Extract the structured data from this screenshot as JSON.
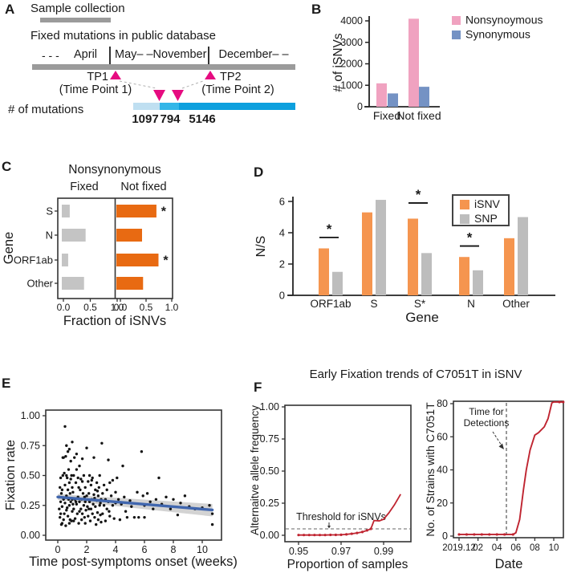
{
  "panelA": {
    "label": "A",
    "sample_collection": "Sample collection",
    "database_title": "Fixed mutations in public database",
    "months": {
      "pre": "- - -",
      "m1": "April",
      "m2": "May– –November",
      "m3": "December– –"
    },
    "tp1": "TP1",
    "tp1_sub": "(Time Point 1)",
    "tp2": "TP2",
    "tp2_sub": "(Time Point 2)",
    "mutations_label": "# of mutations",
    "segments": [
      {
        "value": "1097",
        "color": "#bfdff1"
      },
      {
        "value": "794",
        "color": "#33b6e8"
      },
      {
        "value": "5146",
        "color": "#0da0de"
      }
    ],
    "colors": {
      "timeline_gray": "#9b9b9b",
      "triangle_magenta": "#e60b80",
      "connector": "#b0b0b0"
    }
  },
  "panelB": {
    "label": "B"
  },
  "panelC": {
    "label": "C"
  },
  "panelD": {
    "label": "D"
  },
  "panelE": {
    "label": "E"
  },
  "panelF": {
    "label": "F",
    "title": "Early Fixation trends of C7051T in iSNV"
  },
  "chart_data": [
    {
      "id": "B",
      "type": "bar",
      "categories": [
        "Fixed",
        "Not fixed"
      ],
      "series": [
        {
          "name": "Nonsynoymous",
          "color": "#f0a2c0",
          "values": [
            1090,
            4100
          ]
        },
        {
          "name": "Synonymous",
          "color": "#7492c4",
          "values": [
            620,
            930
          ]
        }
      ],
      "ylabel": "# of iSNVs",
      "yticks": [
        0,
        1000,
        2000,
        3000,
        4000
      ],
      "ylim": [
        0,
        4300
      ],
      "legend_position": "right"
    },
    {
      "id": "C",
      "type": "bar-horizontal",
      "title": "Nonsynonymous",
      "ylabel": "Gene",
      "xlabel": "Fraction of iSNVs",
      "genes": [
        "S",
        "N",
        "ORF1ab",
        "Other"
      ],
      "panels": [
        {
          "name": "Fixed",
          "color": "#c4c4c4",
          "values": [
            0.15,
            0.45,
            0.12,
            0.42
          ],
          "sig": [
            "",
            "",
            "",
            ""
          ]
        },
        {
          "name": "Not fixed",
          "color": "#e86a12",
          "values": [
            0.78,
            0.5,
            0.82,
            0.52
          ],
          "sig": [
            "*",
            "",
            "*",
            ""
          ]
        }
      ],
      "xticks": [
        0.0,
        0.5,
        1.0
      ],
      "xlim": [
        0,
        1.05
      ]
    },
    {
      "id": "D",
      "type": "bar",
      "categories": [
        "ORF1ab",
        "S",
        "S*",
        "N",
        "Other"
      ],
      "series": [
        {
          "name": "iSNV",
          "color": "#f5954f",
          "values": [
            3.0,
            5.3,
            4.9,
            2.45,
            3.65
          ]
        },
        {
          "name": "SNP",
          "color": "#bdbdbd",
          "values": [
            1.5,
            6.1,
            2.7,
            1.6,
            5.0
          ]
        }
      ],
      "ylabel": "N/S",
      "xlabel": "Gene",
      "yticks": [
        0,
        2,
        4,
        6
      ],
      "ylim": [
        0,
        6.3
      ],
      "significance": [
        {
          "category": "ORF1ab",
          "y": 3.7,
          "label": "*"
        },
        {
          "category": "S*",
          "y": 5.9,
          "label": "*"
        },
        {
          "category": "N",
          "y": 3.15,
          "label": "*"
        }
      ]
    },
    {
      "id": "E",
      "type": "scatter",
      "xlabel": "Time post-symptoms onset (weeks)",
      "ylabel": "Fixation rate",
      "xticks": [
        0,
        2,
        4,
        6,
        8,
        10
      ],
      "yticks": [
        0,
        0.25,
        0.5,
        0.75,
        1
      ],
      "xlim": [
        -0.6,
        11.3
      ],
      "ylim": [
        -0.04,
        1.04
      ],
      "point_color": "#151515",
      "regression": {
        "color": "#4066ae",
        "start": [
          0,
          0.32
        ],
        "end": [
          10.7,
          0.212
        ],
        "band": {
          "upper_start": 0.345,
          "upper_end": 0.262,
          "lower_start": 0.296,
          "lower_end": 0.158,
          "color": "#cbcbcb"
        }
      },
      "points": [
        [
          0.1,
          0.32
        ],
        [
          0.1,
          0.22
        ],
        [
          0.15,
          0.15
        ],
        [
          0.15,
          0.4
        ],
        [
          0.2,
          0.48
        ],
        [
          0.2,
          0.28
        ],
        [
          0.2,
          0.18
        ],
        [
          0.25,
          0.09
        ],
        [
          0.25,
          0.35
        ],
        [
          0.3,
          0.38
        ],
        [
          0.3,
          0.24
        ],
        [
          0.3,
          0.1
        ],
        [
          0.35,
          0.5
        ],
        [
          0.35,
          0.65
        ],
        [
          0.4,
          0.65
        ],
        [
          0.4,
          0.3
        ],
        [
          0.4,
          0.13
        ],
        [
          0.45,
          0.18
        ],
        [
          0.45,
          0.52
        ],
        [
          0.5,
          0.91
        ],
        [
          0.5,
          0.42
        ],
        [
          0.5,
          0.27
        ],
        [
          0.55,
          0.66
        ],
        [
          0.55,
          0.08
        ],
        [
          0.6,
          0.75
        ],
        [
          0.6,
          0.33
        ],
        [
          0.6,
          0.21
        ],
        [
          0.6,
          0.5
        ],
        [
          0.65,
          0.48
        ],
        [
          0.65,
          0.23
        ],
        [
          0.7,
          0.7
        ],
        [
          0.7,
          0.38
        ],
        [
          0.7,
          0.16
        ],
        [
          0.75,
          0.55
        ],
        [
          0.75,
          0.3
        ],
        [
          0.8,
          0.72
        ],
        [
          0.8,
          0.44
        ],
        [
          0.8,
          0.25
        ],
        [
          0.8,
          0.1
        ],
        [
          0.85,
          0.35
        ],
        [
          0.85,
          0.13
        ],
        [
          0.9,
          0.62
        ],
        [
          0.9,
          0.28
        ],
        [
          0.9,
          0.47
        ],
        [
          0.95,
          0.5
        ],
        [
          0.95,
          0.12
        ],
        [
          1,
          0.78
        ],
        [
          1,
          0.4
        ],
        [
          1,
          0.2
        ],
        [
          1,
          0.3
        ],
        [
          1.05,
          0.36
        ],
        [
          1.05,
          0.26
        ],
        [
          1.1,
          0.5
        ],
        [
          1.1,
          0.22
        ],
        [
          1.1,
          0.12
        ],
        [
          1.15,
          0.65
        ],
        [
          1.2,
          0.3
        ],
        [
          1.2,
          0.14
        ],
        [
          1.25,
          0.44
        ],
        [
          1.25,
          0.28
        ],
        [
          1.3,
          0.68
        ],
        [
          1.3,
          0.26
        ],
        [
          1.3,
          0.55
        ],
        [
          1.35,
          0.18
        ],
        [
          1.4,
          0.48
        ],
        [
          1.4,
          0.32
        ],
        [
          1.45,
          0.1
        ],
        [
          1.45,
          0.4
        ],
        [
          1.5,
          0.58
        ],
        [
          1.5,
          0.28
        ],
        [
          1.5,
          0.2
        ],
        [
          1.55,
          0.38
        ],
        [
          1.6,
          0.22
        ],
        [
          1.6,
          0.47
        ],
        [
          1.65,
          0.3
        ],
        [
          1.65,
          0.13
        ],
        [
          1.7,
          0.64
        ],
        [
          1.7,
          0.18
        ],
        [
          1.7,
          0.45
        ],
        [
          1.75,
          0.35
        ],
        [
          1.8,
          0.25
        ],
        [
          1.8,
          0.5
        ],
        [
          1.85,
          0.15
        ],
        [
          1.85,
          0.32
        ],
        [
          1.9,
          0.4
        ],
        [
          1.9,
          0.28
        ],
        [
          1.9,
          0.1
        ],
        [
          1.95,
          0.21
        ],
        [
          2,
          0.73
        ],
        [
          2,
          0.33
        ],
        [
          2.05,
          0.24
        ],
        [
          2.1,
          0.45
        ],
        [
          2.1,
          0.16
        ],
        [
          2.15,
          0.35
        ],
        [
          2.15,
          0.22
        ],
        [
          2.2,
          0.28
        ],
        [
          2.2,
          0.5
        ],
        [
          2.25,
          0.12
        ],
        [
          2.3,
          0.42
        ],
        [
          2.3,
          0.22
        ],
        [
          2.35,
          0.3
        ],
        [
          2.35,
          0.46
        ],
        [
          2.4,
          0.18
        ],
        [
          2.4,
          0.48
        ],
        [
          2.45,
          0.26
        ],
        [
          2.5,
          0.65
        ],
        [
          2.5,
          0.34
        ],
        [
          2.55,
          0.15
        ],
        [
          2.55,
          0.31
        ],
        [
          2.6,
          0.38
        ],
        [
          2.6,
          0.24
        ],
        [
          2.65,
          0.09
        ],
        [
          2.7,
          0.44
        ],
        [
          2.7,
          0.29
        ],
        [
          2.75,
          0.19
        ],
        [
          2.75,
          0.37
        ],
        [
          2.8,
          0.33
        ],
        [
          2.8,
          0.13
        ],
        [
          2.85,
          0.4
        ],
        [
          2.9,
          0.25
        ],
        [
          2.9,
          0.5
        ],
        [
          2.95,
          0.17
        ],
        [
          2.95,
          0.27
        ],
        [
          3,
          0.3
        ],
        [
          3,
          0.11
        ],
        [
          3.05,
          0.77
        ],
        [
          3.1,
          0.35
        ],
        [
          3.1,
          0.18
        ],
        [
          3.2,
          0.42
        ],
        [
          3.2,
          0.25
        ],
        [
          3.3,
          0.3
        ],
        [
          3.3,
          0.12
        ],
        [
          3.4,
          0.38
        ],
        [
          3.4,
          0.22
        ],
        [
          3.5,
          0.63
        ],
        [
          3.5,
          0.28
        ],
        [
          3.55,
          0.2
        ],
        [
          3.6,
          0.16
        ],
        [
          3.6,
          0.44
        ],
        [
          3.7,
          0.33
        ],
        [
          3.8,
          0.25
        ],
        [
          3.8,
          0.46
        ],
        [
          3.9,
          0.14
        ],
        [
          4,
          0.36
        ],
        [
          4,
          0.27
        ],
        [
          4.1,
          0.48
        ],
        [
          4.2,
          0.3
        ],
        [
          4.3,
          0.13
        ],
        [
          4.4,
          0.26
        ],
        [
          4.5,
          0.58
        ],
        [
          4.6,
          0.32
        ],
        [
          4.7,
          0.2
        ],
        [
          4.8,
          0.15
        ],
        [
          5,
          0.29
        ],
        [
          5.1,
          0.24
        ],
        [
          5.3,
          0.15
        ],
        [
          5.5,
          0.36
        ],
        [
          5.6,
          0.15
        ],
        [
          5.8,
          0.7
        ],
        [
          5.9,
          0.33
        ],
        [
          6,
          0.25
        ],
        [
          6,
          0.15
        ],
        [
          6.2,
          0.35
        ],
        [
          6.4,
          0.28
        ],
        [
          6.6,
          0.22
        ],
        [
          6.8,
          0.3
        ],
        [
          7,
          0.48
        ],
        [
          7.2,
          0.26
        ],
        [
          7.5,
          0.32
        ],
        [
          7.8,
          0.22
        ],
        [
          8,
          0.3
        ],
        [
          8.3,
          0.17
        ],
        [
          8.5,
          0.27
        ],
        [
          8.8,
          0.33
        ],
        [
          9.1,
          0.24
        ],
        [
          9.5,
          0.22
        ],
        [
          10,
          0.23
        ],
        [
          10.5,
          0.25
        ],
        [
          10.7,
          0.18
        ],
        [
          10.7,
          0.09
        ]
      ]
    },
    {
      "id": "F1",
      "type": "line",
      "xlabel": "Proportion of samples",
      "ylabel": "Alternaitve allele frequency",
      "xticks": [
        0.95,
        0.97,
        0.99
      ],
      "yticks": [
        0,
        0.25,
        0.5,
        0.75,
        1
      ],
      "color": "#bf2430",
      "threshold": {
        "value": 0.05,
        "label": "Threshold for iSNVs"
      },
      "points": [
        [
          0.95,
          0.002
        ],
        [
          0.9525,
          0.002
        ],
        [
          0.955,
          0.002
        ],
        [
          0.9575,
          0.002
        ],
        [
          0.96,
          0.002
        ],
        [
          0.9625,
          0.002
        ],
        [
          0.965,
          0.003
        ],
        [
          0.9675,
          0.003
        ],
        [
          0.97,
          0.004
        ],
        [
          0.9725,
          0.007
        ],
        [
          0.975,
          0.012
        ],
        [
          0.9775,
          0.018
        ],
        [
          0.98,
          0.026
        ],
        [
          0.9822,
          0.038
        ],
        [
          0.984,
          0.05
        ],
        [
          0.9855,
          0.115
        ],
        [
          0.988,
          0.112
        ],
        [
          0.99,
          0.125
        ],
        [
          0.9925,
          0.175
        ],
        [
          0.995,
          0.235
        ],
        [
          0.998,
          0.32
        ]
      ]
    },
    {
      "id": "F2",
      "type": "line",
      "xlabel": "Date",
      "ylabel": "No. of Strains with C7051T",
      "xtick_labels": [
        "2019.12",
        "02",
        "04",
        "06",
        "08",
        "10"
      ],
      "xtick_positions": [
        0,
        2,
        4,
        6,
        8,
        10
      ],
      "yticks": [
        0,
        20,
        40,
        60,
        80
      ],
      "color": "#bf2430",
      "vline": {
        "x": 5,
        "label_line1": "Time for",
        "label_line2": "Detections"
      },
      "points": [
        [
          0,
          1
        ],
        [
          5.7,
          1
        ],
        [
          6,
          2
        ],
        [
          6.4,
          10
        ],
        [
          6.8,
          28
        ],
        [
          7.1,
          40
        ],
        [
          7.5,
          52
        ],
        [
          8,
          61
        ],
        [
          8.4,
          62.5
        ],
        [
          9,
          66
        ],
        [
          9.4,
          71
        ],
        [
          9.8,
          80.5
        ],
        [
          10,
          81
        ],
        [
          11,
          81
        ]
      ],
      "marker_points": [
        [
          0,
          1
        ],
        [
          0.8,
          1
        ],
        [
          1.6,
          1
        ],
        [
          2.4,
          1
        ],
        [
          3.2,
          1
        ],
        [
          4,
          1
        ],
        [
          4.8,
          1
        ],
        [
          5.7,
          1
        ],
        [
          10.6,
          81
        ],
        [
          11,
          81
        ]
      ]
    }
  ]
}
